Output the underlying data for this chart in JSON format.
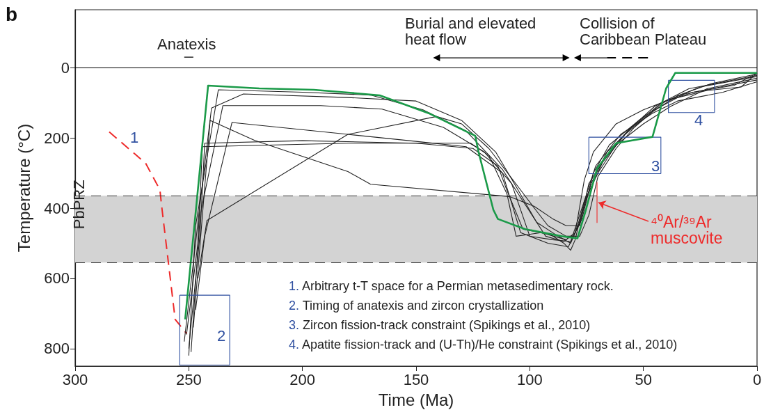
{
  "chart_data": {
    "type": "line",
    "xlabel": "Time (Ma)",
    "ylabel": "Temperature (°C)",
    "xlim": [
      300,
      0
    ],
    "xticks": [
      300,
      250,
      200,
      150,
      100,
      50,
      0
    ],
    "ylim": [
      850,
      -165
    ],
    "yticks": [
      0,
      200,
      400,
      600,
      800
    ],
    "grid": false,
    "marker": "none",
    "series": [
      {
        "color": "#1a9a48",
        "x": [
          251.6,
          241.5,
          219,
          195,
          180,
          166,
          144,
          124,
          122.5,
          116,
          114,
          102,
          86,
          79,
          75.3,
          70.4,
          62,
          46,
          40,
          36,
          0
        ],
        "values": [
          717,
          51,
          59,
          63,
          71,
          79,
          131,
          194,
          241,
          405,
          431,
          460,
          480,
          486,
          405,
          287,
          215,
          197,
          59,
          15,
          15
        ]
      },
      {
        "color": "#ee2a2a",
        "line_style": "dashed",
        "x": [
          285,
          269,
          262.7,
          262,
          256,
          251
        ],
        "values": [
          183,
          272,
          348,
          391,
          717,
          757
        ]
      },
      {
        "color": "#222222",
        "x": [
          250,
          247,
          237,
          200,
          170,
          147,
          128,
          112,
          100,
          93,
          85,
          80,
          75,
          68,
          58,
          47,
          35,
          20,
          0
        ],
        "values": [
          820,
          450,
          63,
          70,
          78,
          120,
          180,
          290,
          410,
          480,
          495,
          470,
          370,
          270,
          190,
          130,
          80,
          45,
          18
        ]
      },
      {
        "color": "#222222",
        "x": [
          252,
          244,
          240,
          226,
          180,
          150,
          130,
          115,
          105,
          97,
          88,
          82,
          78,
          73,
          66,
          55,
          42,
          25,
          0
        ],
        "values": [
          780,
          330,
          115,
          75,
          85,
          95,
          150,
          240,
          350,
          440,
          478,
          500,
          440,
          330,
          240,
          170,
          100,
          55,
          25
        ]
      },
      {
        "color": "#222222",
        "x": [
          249,
          245,
          235,
          192,
          165,
          138,
          120,
          108,
          100,
          90,
          82,
          76,
          70,
          62,
          50,
          38,
          22,
          0
        ],
        "values": [
          810,
          420,
          108,
          108,
          118,
          170,
          240,
          330,
          480,
          490,
          495,
          380,
          300,
          220,
          160,
          110,
          60,
          30
        ]
      },
      {
        "color": "#222222",
        "x": [
          247,
          243,
          231,
          180,
          150,
          128,
          112,
          104,
          92,
          83,
          77,
          72,
          65,
          52,
          40,
          28,
          10,
          0
        ],
        "values": [
          690,
          480,
          156,
          190,
          210,
          225,
          300,
          470,
          500,
          510,
          430,
          300,
          220,
          150,
          95,
          70,
          50,
          15
        ]
      },
      {
        "color": "#222222",
        "x": [
          251,
          246,
          244,
          180,
          126,
          118,
          110,
          106,
          95,
          84,
          80,
          76,
          72,
          62,
          50,
          38,
          22,
          7,
          0
        ],
        "values": [
          760,
          500,
          225,
          215,
          215,
          250,
          360,
          480,
          470,
          490,
          470,
          320,
          240,
          160,
          120,
          90,
          65,
          55,
          15
        ]
      },
      {
        "color": "#222222",
        "x": [
          248,
          244,
          240.6,
          221,
          180,
          170,
          109,
          98,
          90,
          84,
          78,
          74,
          66,
          57,
          45,
          30,
          0
        ],
        "values": [
          740,
          420,
          150,
          207,
          296,
          332,
          367,
          395,
          430,
          450,
          450,
          330,
          250,
          180,
          110,
          60,
          22
        ]
      },
      {
        "color": "#222222",
        "x": [
          246,
          242,
          180,
          141,
          130,
          118,
          105,
          98,
          92,
          84,
          78,
          74,
          70,
          62,
          54,
          45,
          32,
          0
        ],
        "values": [
          600,
          435,
          190,
          139,
          160,
          230,
          340,
          400,
          450,
          480,
          480,
          420,
          310,
          230,
          170,
          120,
          75,
          35
        ]
      },
      {
        "color": "#222222",
        "x": [
          250,
          245,
          243,
          200,
          150,
          125,
          114,
          110,
          103,
          91,
          85,
          82,
          80,
          76,
          71,
          60,
          46,
          35,
          15,
          0
        ],
        "values": [
          800,
          470,
          215,
          208,
          215,
          230,
          280,
          350,
          460,
          475,
          500,
          520,
          490,
          380,
          280,
          190,
          130,
          95,
          70,
          40
        ]
      },
      {
        "color": "#ee2a2a",
        "x": [
          70.4,
          70.4
        ],
        "values": [
          326,
          442
        ]
      },
      {
        "color": "#2e4fa0",
        "x": [
          254,
          232,
          232
        ],
        "values": [
          648,
          648,
          847
        ]
      },
      {
        "color": "#2e4fa0",
        "x": [
          232,
          254,
          254
        ],
        "values": [
          847,
          847,
          648
        ]
      },
      {
        "color": "#2e4fa0",
        "x": [
          74,
          42.3,
          42.3
        ],
        "values": [
          198,
          198,
          302
        ]
      },
      {
        "color": "#2e4fa0",
        "x": [
          42.3,
          74,
          74
        ],
        "values": [
          302,
          302,
          198
        ]
      },
      {
        "color": "#2e4fa0",
        "x": [
          39,
          18.7,
          18.7
        ],
        "values": [
          36,
          36,
          128
        ]
      },
      {
        "color": "#2e4fa0",
        "x": [
          18.7,
          39,
          39
        ],
        "values": [
          128,
          128,
          36
        ]
      },
      {
        "color": "#000000",
        "x": [
          252,
          248
        ],
        "values": [
          -30,
          -30
        ]
      },
      {
        "color": "#000000",
        "marker": "triangle",
        "x": [
          141,
          84
        ],
        "values": [
          -28,
          -28
        ]
      },
      {
        "color": "#000000",
        "marker": "triangle",
        "x": [
          66,
          79
        ],
        "values": [
          -28,
          -28
        ]
      },
      {
        "color": "#000000",
        "line_style": "dashed",
        "x": [
          48,
          66
        ],
        "values": [
          -28,
          -28
        ]
      }
    ],
    "ref_lines": [
      {
        "axis": "y",
        "value": 0,
        "color": "#000000"
      },
      {
        "axis": "y",
        "value": 365,
        "color": "#333333",
        "line_style": "dashed"
      },
      {
        "axis": "y",
        "value": 555,
        "color": "#333333",
        "line_style": "dashed"
      }
    ],
    "bands": [
      {
        "axis": "y",
        "from": 365,
        "to": 555,
        "label": "PbPRZ",
        "color": "#d3d3d3"
      }
    ],
    "annotations": [
      "b",
      "Anatexis",
      "Burial and elevated\nheat flow",
      "Collision of\nCaribbean Plateau",
      {
        "text": "⁴⁰Ar/³⁹Ar\nmuscovite",
        "x": 70.4,
        "y": 384
      },
      "1",
      "2",
      "3",
      "4",
      "1. Arbitrary t-T space for a Permian metasedimentary rock.",
      "2. Timing of anatexis and zircon crystallization",
      "3. Zircon fission-track constraint (Spikings et al., 2010)",
      "4. Apatite fission-track and (U-Th)/He constraint (Spikings et al., 2010)"
    ]
  }
}
